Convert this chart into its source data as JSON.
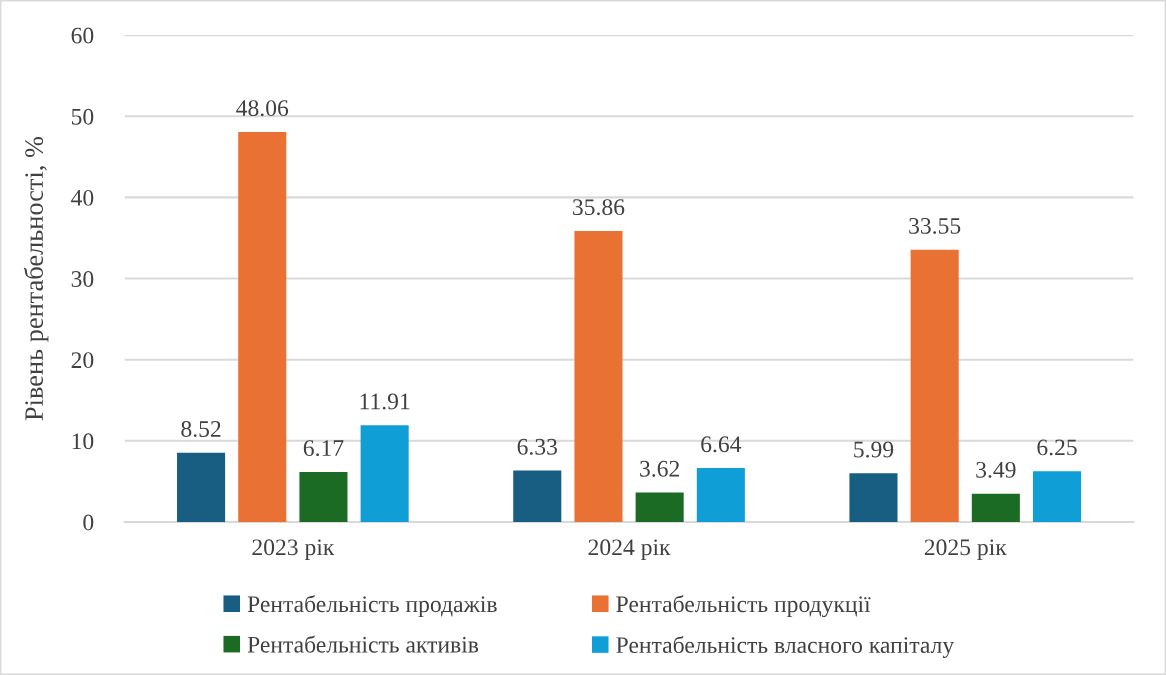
{
  "chart_data": {
    "type": "bar",
    "ylabel": "Рівень рентабельності, %",
    "categories": [
      "2023 рік",
      "2024 рік",
      "2025 рік"
    ],
    "series": [
      {
        "name": "Рентабельність продажів",
        "color": "#175e82",
        "values": [
          8.52,
          6.33,
          5.99
        ]
      },
      {
        "name": "Рентабельність продукції",
        "color": "#e87133",
        "values": [
          48.06,
          35.86,
          33.55
        ]
      },
      {
        "name": "Рентабельність активів",
        "color": "#1c6b24",
        "values": [
          6.17,
          3.62,
          3.49
        ]
      },
      {
        "name": "Рентабельність власного капіталу",
        "color": "#0f9ed6",
        "values": [
          11.91,
          6.64,
          6.25
        ]
      }
    ],
    "ylim": [
      0,
      60
    ],
    "yticks": [
      0,
      10,
      20,
      30,
      40,
      50,
      60
    ],
    "grid": "y",
    "legend": "bottom",
    "data_labels": true
  }
}
